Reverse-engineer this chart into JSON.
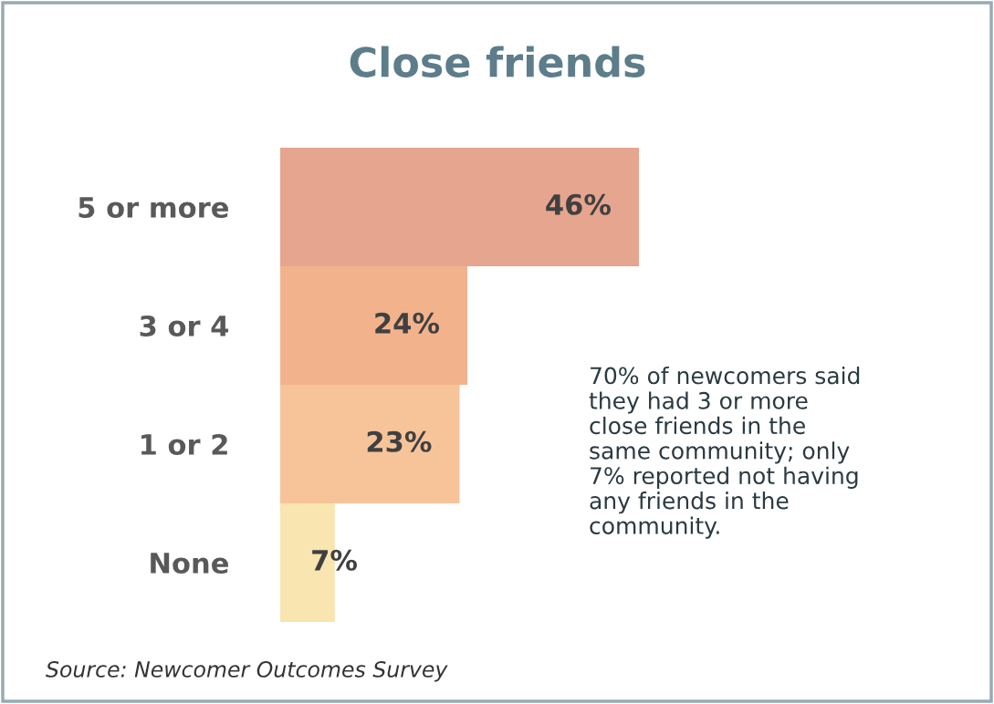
{
  "chart_data": {
    "type": "bar",
    "orientation": "horizontal",
    "title": "Close friends",
    "categories": [
      "5 or more",
      "3 or 4",
      "1 or 2",
      "None"
    ],
    "values": [
      46,
      24,
      23,
      7
    ],
    "colors": [
      "#e6a58e",
      "#f2b38c",
      "#f7c49a",
      "#f8e5b0"
    ],
    "value_labels": [
      "46%",
      "24%",
      "23%",
      "7%"
    ],
    "grid": false,
    "legend": false,
    "annotations": [
      "70% of newcomers said\nthey had 3 or more\nclose friends in the\nsame community; only\n7% reported not having\nany friends in the\ncommunity.",
      "Source: Newcomer Outcomes Survey"
    ]
  }
}
